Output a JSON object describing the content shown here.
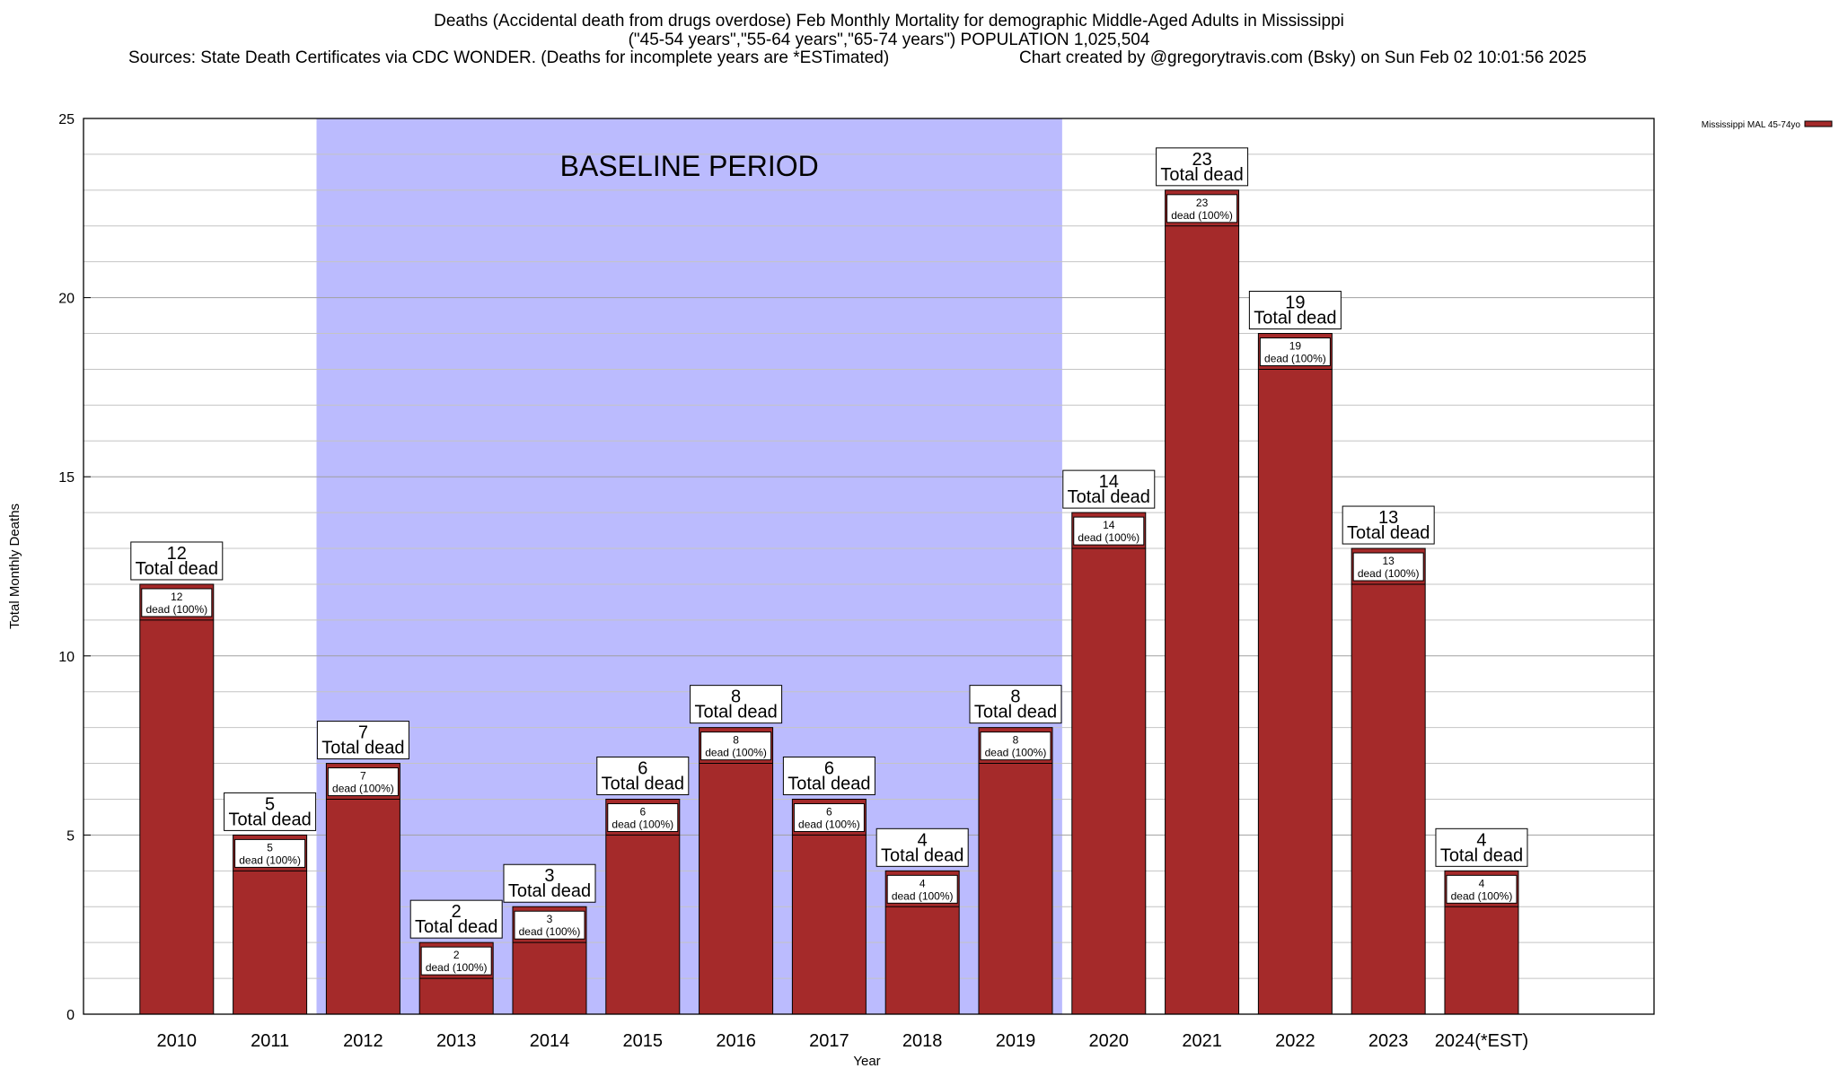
{
  "header": {
    "title_line1": "Deaths (Accidental death from drugs overdose) Feb Monthly Mortality for demographic Middle-Aged Adults in Mississippi",
    "title_line2": "(\"45-54 years\",\"55-64 years\",\"65-74 years\") POPULATION 1,025,504",
    "source": "Sources: State Death Certificates via CDC WONDER. (Deaths for incomplete years are *ESTimated)",
    "credit": "Chart created by @gregorytravis.com (Bsky) on Sun Feb 02 10:01:56 2025"
  },
  "chart_data": {
    "type": "bar",
    "xlabel": "Year",
    "ylabel": "Total Monthly Deaths",
    "ylim": [
      0,
      25
    ],
    "yticks": [
      0,
      5,
      10,
      15,
      20,
      25
    ],
    "grid": true,
    "legend_position": "top-right",
    "categories": [
      "2010",
      "2011",
      "2012",
      "2013",
      "2014",
      "2015",
      "2016",
      "2017",
      "2018",
      "2019",
      "2020",
      "2021",
      "2022",
      "2023",
      "2024(*EST)"
    ],
    "series": [
      {
        "name": "Mississippi MAL 45-74yo",
        "color": "#a52a2a",
        "values": [
          12,
          5,
          7,
          2,
          3,
          6,
          8,
          6,
          4,
          8,
          14,
          23,
          19,
          13,
          4
        ]
      }
    ],
    "total_label": "Total dead",
    "segment_label": "dead (100%)",
    "baseline": {
      "label": "BASELINE PERIOD",
      "start": "2012",
      "end": "2019",
      "color": "#bbbbfe"
    }
  }
}
